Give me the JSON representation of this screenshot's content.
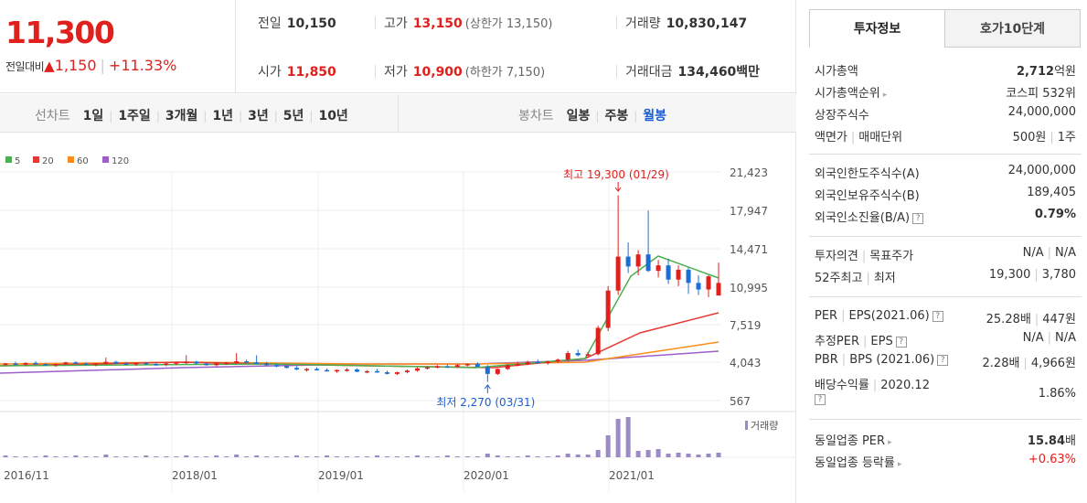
{
  "summary": {
    "current_price": "11,300",
    "change_label": "전일대비",
    "change_amount": "1,150",
    "change_rate": "+11.33%"
  },
  "quote": {
    "prev_close": {
      "label": "전일",
      "value": "10,150"
    },
    "high": {
      "label": "고가",
      "value": "13,150",
      "note": "(상한가 13,150)"
    },
    "volume": {
      "label": "거래량",
      "value": "10,830,147"
    },
    "open": {
      "label": "시가",
      "value": "11,850"
    },
    "low": {
      "label": "저가",
      "value": "10,900",
      "note": "(하한가 7,150)"
    },
    "turnover": {
      "label": "거래대금",
      "value": "134,460",
      "unit": "백만"
    }
  },
  "period_tabs": {
    "title": "선차트",
    "items": [
      "1일",
      "1주일",
      "3개월",
      "1년",
      "3년",
      "5년",
      "10년"
    ]
  },
  "candle_tabs": {
    "title": "봉차트",
    "items": [
      "일봉",
      "주봉",
      "월봉"
    ],
    "active": "월봉"
  },
  "chart_data": {
    "type": "candlestick",
    "legend": [
      {
        "name": "5",
        "color": "#4caf50"
      },
      {
        "name": "20",
        "color": "#e53935"
      },
      {
        "name": "60",
        "color": "#ff8c1a"
      },
      {
        "name": "120",
        "color": "#9c5fc9"
      }
    ],
    "y_ticks": [
      "21,423",
      "17,947",
      "14,471",
      "10,995",
      "7,519",
      "4,043",
      "567"
    ],
    "x_ticks": [
      "2016/11",
      "2018/01",
      "2019/01",
      "2020/01",
      "2021/01"
    ],
    "max_label": "최고 19,300 (01/29)",
    "min_label": "최저 2,270 (03/31)",
    "volume_label": "거래량",
    "colors": {
      "up": "#e0201c",
      "down": "#1a6fd6",
      "volume": "#9b8ac4"
    }
  },
  "info_tabs": [
    "투자정보",
    "호가10단계"
  ],
  "info": {
    "sec1": [
      {
        "k": "시가총액",
        "v": "2,712",
        "unit": "억원"
      },
      {
        "k": "시가총액순위",
        "v": "코스피 532위"
      },
      {
        "k": "상장주식수",
        "v": "24,000,000"
      },
      {
        "k1": "액면가",
        "k2": "매매단위",
        "v1": "500원",
        "v2": "1주"
      }
    ],
    "sec2": [
      {
        "k": "외국인한도주식수(A)",
        "v": "24,000,000"
      },
      {
        "k": "외국인보유주식수(B)",
        "v": "189,405"
      },
      {
        "k": "외국인소진율(B/A)",
        "v": "0.79%"
      }
    ],
    "sec3": [
      {
        "k1": "투자의견",
        "k2": "목표주가",
        "v1": "N/A",
        "v2": "N/A"
      },
      {
        "k1": "52주최고",
        "k2": "최저",
        "v1": "19,300",
        "v2": "3,780"
      }
    ],
    "sec4": [
      {
        "k1": "PER",
        "k2": "EPS(2021.06)",
        "v1": "25.28배",
        "v2": "447원"
      },
      {
        "k1": "추정PER",
        "k2": "EPS",
        "v1": "N/A",
        "v2": "N/A"
      },
      {
        "k1": "PBR",
        "k2": "BPS (2021.06)",
        "v1": "2.28배",
        "v2": "4,966원"
      },
      {
        "k1": "배당수익률",
        "k2": "2020.12",
        "v": "1.86%"
      }
    ],
    "sec5": [
      {
        "k": "동일업종 PER",
        "v": "15.84",
        "unit": "배"
      },
      {
        "k": "동일업종 등락률",
        "v": "+0.63%"
      }
    ]
  }
}
